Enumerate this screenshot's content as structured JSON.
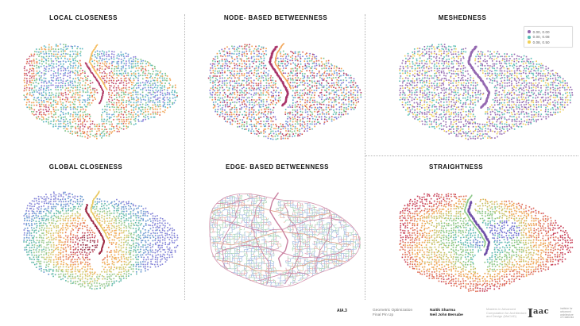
{
  "footer": {
    "course_code": "AIA.3",
    "project_line1": "Geometric Optimization",
    "project_line2": "Final Pin Up",
    "author1": "Naitik Sharma",
    "author2": "Neil John Bersabe",
    "program_line1": "Masters in Advanced",
    "program_line2": "Computation for Architecture",
    "program_line3": "and Design (MaCAD)",
    "logo": {
      "i": "I",
      "rest": "aac"
    },
    "logo_caption_line1": "institute for",
    "logo_caption_line2": "advanced",
    "logo_caption_line3": "architecture",
    "logo_caption_line4": "of Catalonia"
  },
  "chart_data": [
    {
      "type": "scatter",
      "title": "LOCAL CLOSENESS",
      "description": "Street-network nodes of the same base city map, colored by local closeness; values form small spatial clusters",
      "color_mode": "clustered",
      "palette": [
        "#c0486e",
        "#e0634f",
        "#f2a04c",
        "#7cc488",
        "#58b8c0",
        "#6898d8",
        "#8878d8"
      ],
      "highlight_route_color": "#b03a66",
      "secondary_route_color": "#f5bc5e",
      "seed": 11
    },
    {
      "type": "scatter",
      "title": "NODE- BASED BETWEENNESS",
      "description": "Nodes colored by betweenness, near-random mix; one high-betweenness central route emphasized in crimson with an orange route beside it",
      "color_mode": "random",
      "palette": [
        "#b03a66",
        "#d95b4f",
        "#f2a04c",
        "#7cc488",
        "#56bdb4",
        "#6898d8",
        "#8474d4"
      ],
      "highlight_route_color": "#a8356a",
      "secondary_route_color": "#f2a85c",
      "seed": 23
    },
    {
      "type": "scatter",
      "title": "MESHEDNESS",
      "description": "Nodes binned into three meshedness ranges (purple dominant, teal, yellow); central route in purple",
      "color_mode": "weighted",
      "palette": [
        "#9468b0",
        "#56bdb4",
        "#f0d054"
      ],
      "weights": [
        0.54,
        0.25,
        0.21
      ],
      "highlight_route_color": "#9468b0",
      "legend": {
        "items": [
          {
            "color": "#9468b0",
            "label": "0.00, 0.00"
          },
          {
            "color": "#56bdb4",
            "label": "0.00, 0.08"
          },
          {
            "color": "#f0d054",
            "label": "0.08, 0.50"
          }
        ]
      },
      "seed": 37
    },
    {
      "type": "scatter",
      "title": "GLOBAL CLOSENESS",
      "description": "Radial gradient: dark red at the network core grading through orange and green to blue at the periphery; dark red central route with yellow route beside it",
      "color_mode": "radial",
      "palette": [
        "#993048",
        "#c84858",
        "#e87850",
        "#f2a84c",
        "#d4c868",
        "#94c888",
        "#5cb8a8",
        "#6494d0",
        "#8080d8"
      ],
      "highlight_route_color": "#9e2b45",
      "secondary_route_color": "#e8c860",
      "seed": 47
    },
    {
      "type": "network",
      "title": "EDGE- BASED BETWEENNESS",
      "description": "Street segments (edges) drawn as lines: low betweenness in light blue/green, high-betweenness routes and ring roads in pink/salmon",
      "edge_palette": [
        "#a0b8e0",
        "#a8d4b4",
        "#d898b0",
        "#ecb09a"
      ],
      "edge_weights": [
        0.42,
        0.36,
        0.13,
        0.09
      ],
      "route_color": "#c97f9f",
      "route_alt_color": "#e0a088",
      "seed": 59
    },
    {
      "type": "scatter",
      "title": "STRAIGHTNESS",
      "description": "Inverted radial gradient: blue/green near the center, orange then crimson toward the periphery; blue cluster right of center, purple central route with green route beside it",
      "color_mode": "radial_inverted",
      "palette": [
        "#6888d0",
        "#58b8b0",
        "#84c47c",
        "#c8c060",
        "#f0a048",
        "#e06850",
        "#c83a52"
      ],
      "cluster_color": "#6a6ad0",
      "highlight_route_color": "#7050a8",
      "secondary_route_color": "#8cc888",
      "seed": 71
    }
  ]
}
